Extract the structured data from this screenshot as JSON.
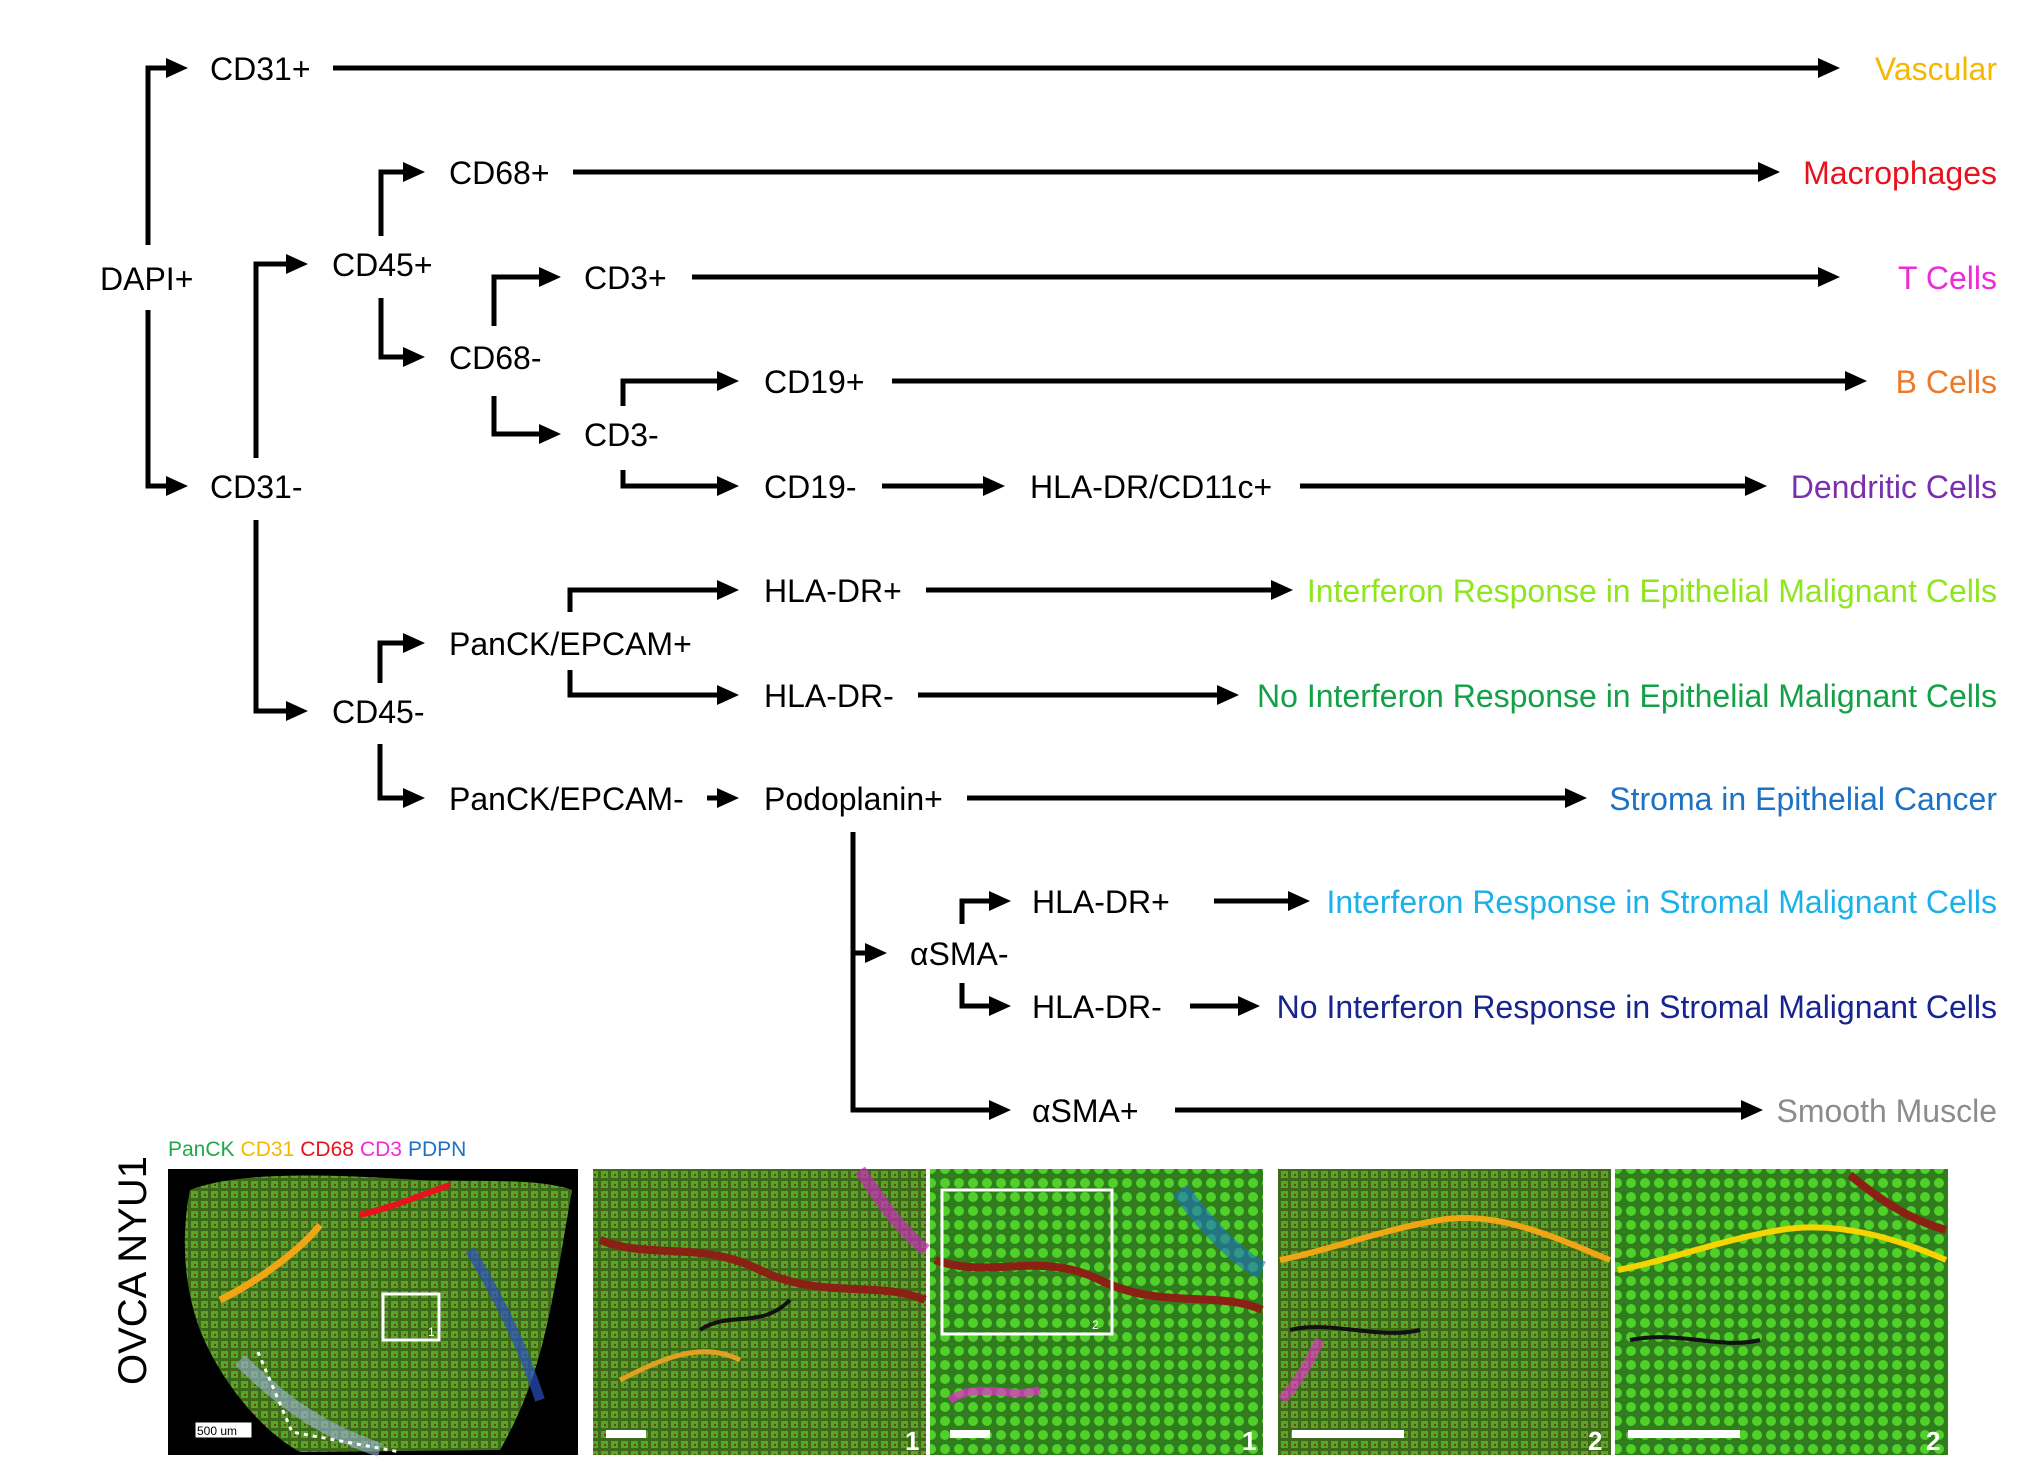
{
  "diagram": {
    "nodes": {
      "dapi": "DAPI+",
      "cd31_pos": "CD31+",
      "cd31_neg": "CD31-",
      "cd45_pos": "CD45+",
      "cd45_neg": "CD45-",
      "cd68_pos": "CD68+",
      "cd68_neg": "CD68-",
      "cd3_pos": "CD3+",
      "cd3_neg": "CD3-",
      "cd19_pos": "CD19+",
      "cd19_neg": "CD19-",
      "hla_cd11c": "HLA-DR/CD11c+",
      "panck_pos": "PanCK/EPCAM+",
      "panck_neg": "PanCK/EPCAM-",
      "hla_pos_epi": "HLA-DR+",
      "hla_neg_epi": "HLA-DR-",
      "podoplanin": "Podoplanin+",
      "asma_neg": "αSMA-",
      "asma_pos": "αSMA+",
      "hla_pos_str": "HLA-DR+",
      "hla_neg_str": "HLA-DR-"
    },
    "outcomes": [
      {
        "key": "vascular",
        "label": "Vascular",
        "color": "#f5b800"
      },
      {
        "key": "macrophages",
        "label": "Macrophages",
        "color": "#e8121c"
      },
      {
        "key": "tcells",
        "label": "T Cells",
        "color": "#ee2bd6"
      },
      {
        "key": "bcells",
        "label": "B Cells",
        "color": "#ec7a2a"
      },
      {
        "key": "dendritic",
        "label": "Dendritic Cells",
        "color": "#7a2fb0"
      },
      {
        "key": "ifn_epi",
        "label": "Interferon Response in Epithelial Malignant Cells",
        "color": "#8fe61e"
      },
      {
        "key": "noifn_epi",
        "label": "No Interferon Response in Epithelial Malignant Cells",
        "color": "#13a046"
      },
      {
        "key": "stroma",
        "label": "Stroma in Epithelial Cancer",
        "color": "#1d72c4"
      },
      {
        "key": "ifn_str",
        "label": "Interferon Response in Stromal Malignant Cells",
        "color": "#1ab1ea"
      },
      {
        "key": "noifn_str",
        "label": "No Interferon Response in Stromal Malignant Cells",
        "color": "#16258f"
      },
      {
        "key": "smooth",
        "label": "Smooth Muscle",
        "color": "#8c8c8c"
      }
    ]
  },
  "legend": {
    "stains": [
      {
        "label": "PanCK",
        "color": "#1ea84a"
      },
      {
        "label": "CD31",
        "color": "#f5b800"
      },
      {
        "label": "CD68",
        "color": "#e8121c"
      },
      {
        "label": "CD3",
        "color": "#ee2bd6"
      },
      {
        "label": "PDPN",
        "color": "#1d72c4"
      }
    ]
  },
  "sample_label": "OVCA NYU1",
  "scale_label": "500 um",
  "panel_numbers": [
    "1",
    "1",
    "1",
    "2",
    "2",
    "2"
  ]
}
